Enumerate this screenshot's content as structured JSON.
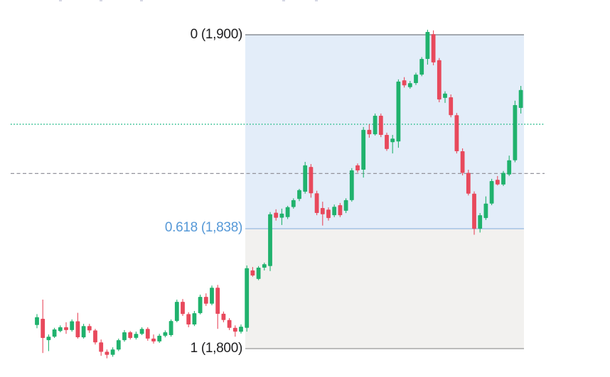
{
  "chart_data": {
    "type": "candlestick",
    "description": "Price chart with Fibonacci retracement overlay from 1,900 (level 0) to 1,800 (level 1)",
    "fib_levels": [
      {
        "label": "0 (1,900)",
        "level": 0,
        "price": 1900,
        "text_color": "#1d1d1f",
        "line_color": "#999ea5"
      },
      {
        "label": "0.618 (1,838)",
        "level": 0.618,
        "price": 1838,
        "text_color": "#5598d7",
        "line_color": "#aac6e4"
      },
      {
        "label": "1 (1,800)",
        "level": 1,
        "price": 1800,
        "text_color": "#1d1d1f",
        "line_color": "#b3b3b3"
      }
    ],
    "zones": [
      {
        "between_levels": [
          0,
          0.618
        ],
        "color": "#e3edf9"
      },
      {
        "between_levels": [
          0.618,
          1
        ],
        "color": "#f2f1ef"
      }
    ],
    "reference_lines": [
      {
        "price": 1871.5,
        "style": "dotted",
        "color": "#45c59b"
      },
      {
        "price": 1855.8,
        "style": "dashed",
        "color": "#94949c"
      }
    ],
    "colors": {
      "up": "#20b26d",
      "down": "#e8495c"
    },
    "legend_position": "none",
    "grid": false,
    "ylim": [
      1793,
      1905
    ],
    "candles_ohlc": [
      [
        1807.5,
        1811.0,
        1806.5,
        1810.0
      ],
      [
        1809.5,
        1815.6,
        1798.6,
        1803.4
      ],
      [
        1802.7,
        1804.5,
        1799.2,
        1803.8
      ],
      [
        1803.8,
        1806.6,
        1803.4,
        1806.1
      ],
      [
        1805.6,
        1807.4,
        1805.2,
        1806.8
      ],
      [
        1806.8,
        1808.4,
        1804.7,
        1805.9
      ],
      [
        1805.9,
        1809.3,
        1805.4,
        1808.7
      ],
      [
        1808.7,
        1811.4,
        1803.2,
        1803.6
      ],
      [
        1803.6,
        1807.9,
        1803.2,
        1807.2
      ],
      [
        1807.2,
        1807.9,
        1805.0,
        1805.8
      ],
      [
        1805.8,
        1806.3,
        1801.3,
        1802.0
      ],
      [
        1802.0,
        1802.9,
        1797.7,
        1799.0
      ],
      [
        1799.0,
        1799.7,
        1796.9,
        1798.0
      ],
      [
        1798.0,
        1800.4,
        1797.4,
        1799.7
      ],
      [
        1799.7,
        1803.2,
        1799.2,
        1802.7
      ],
      [
        1802.7,
        1805.9,
        1802.2,
        1805.2
      ],
      [
        1805.2,
        1805.6,
        1802.9,
        1803.4
      ],
      [
        1803.4,
        1805.4,
        1802.9,
        1804.7
      ],
      [
        1804.7,
        1806.8,
        1804.3,
        1806.3
      ],
      [
        1806.3,
        1806.8,
        1802.5,
        1803.2
      ],
      [
        1803.2,
        1804.5,
        1801.6,
        1802.3
      ],
      [
        1802.3,
        1804.7,
        1801.8,
        1804.1
      ],
      [
        1804.1,
        1805.8,
        1803.6,
        1805.2
      ],
      [
        1804.3,
        1809.3,
        1803.8,
        1808.8
      ],
      [
        1808.8,
        1815.6,
        1808.4,
        1814.9
      ],
      [
        1814.9,
        1815.8,
        1810.4,
        1811.0
      ],
      [
        1811.0,
        1811.6,
        1806.8,
        1807.7
      ],
      [
        1807.7,
        1812.0,
        1807.2,
        1811.3
      ],
      [
        1811.3,
        1817.2,
        1810.9,
        1816.5
      ],
      [
        1816.5,
        1817.6,
        1813.6,
        1814.3
      ],
      [
        1814.3,
        1820.1,
        1813.8,
        1819.4
      ],
      [
        1819.4,
        1820.3,
        1806.3,
        1811.1
      ],
      [
        1811.1,
        1811.8,
        1808.4,
        1809.1
      ],
      [
        1809.1,
        1809.7,
        1805.9,
        1806.6
      ],
      [
        1806.6,
        1807.4,
        1803.8,
        1805.4
      ],
      [
        1805.4,
        1807.7,
        1804.8,
        1807.0
      ],
      [
        1806.6,
        1826.5,
        1805.4,
        1825.6
      ],
      [
        1824.9,
        1826.0,
        1822.9,
        1823.3
      ],
      [
        1822.2,
        1826.3,
        1821.8,
        1825.8
      ],
      [
        1825.8,
        1827.4,
        1824.9,
        1826.9
      ],
      [
        1826.3,
        1843.5,
        1824.7,
        1842.8
      ],
      [
        1843.3,
        1844.4,
        1840.8,
        1841.7
      ],
      [
        1841.7,
        1844.6,
        1839.4,
        1843.0
      ],
      [
        1841.9,
        1845.5,
        1841.3,
        1845.1
      ],
      [
        1845.1,
        1847.9,
        1844.6,
        1847.3
      ],
      [
        1847.7,
        1850.9,
        1847.0,
        1850.5
      ],
      [
        1850.0,
        1859.5,
        1849.4,
        1858.4
      ],
      [
        1857.9,
        1858.8,
        1848.1,
        1849.5
      ],
      [
        1849.5,
        1850.3,
        1842.5,
        1843.2
      ],
      [
        1844.8,
        1846.8,
        1839.2,
        1842.8
      ],
      [
        1844.3,
        1845.0,
        1840.8,
        1841.6
      ],
      [
        1842.5,
        1845.9,
        1841.9,
        1845.2
      ],
      [
        1845.7,
        1846.4,
        1841.9,
        1842.5
      ],
      [
        1843.9,
        1847.9,
        1843.2,
        1847.3
      ],
      [
        1847.3,
        1857.5,
        1846.8,
        1856.8
      ],
      [
        1858.4,
        1859.0,
        1856.1,
        1856.8
      ],
      [
        1857.0,
        1870.6,
        1854.5,
        1869.7
      ],
      [
        1869.7,
        1871.5,
        1867.2,
        1868.3
      ],
      [
        1868.3,
        1874.9,
        1867.9,
        1874.2
      ],
      [
        1874.2,
        1874.9,
        1867.4,
        1868.1
      ],
      [
        1868.1,
        1868.8,
        1863.0,
        1863.6
      ],
      [
        1865.8,
        1868.1,
        1862.2,
        1866.9
      ],
      [
        1866.0,
        1885.8,
        1864.0,
        1885.1
      ],
      [
        1885.5,
        1886.5,
        1883.2,
        1883.9
      ],
      [
        1883.3,
        1885.3,
        1882.8,
        1884.6
      ],
      [
        1884.6,
        1887.9,
        1884.0,
        1887.3
      ],
      [
        1887.3,
        1892.9,
        1886.8,
        1892.3
      ],
      [
        1892.3,
        1901.6,
        1890.5,
        1900.9
      ],
      [
        1900.2,
        1901.4,
        1890.3,
        1891.2
      ],
      [
        1891.9,
        1892.6,
        1878.5,
        1879.4
      ],
      [
        1879.9,
        1882.0,
        1878.3,
        1881.3
      ],
      [
        1880.1,
        1881.0,
        1873.7,
        1874.4
      ],
      [
        1874.4,
        1875.1,
        1862.2,
        1862.9
      ],
      [
        1862.9,
        1863.8,
        1855.2,
        1856.0
      ],
      [
        1856.0,
        1857.0,
        1848.8,
        1849.4
      ],
      [
        1849.4,
        1850.1,
        1836.3,
        1838.2
      ],
      [
        1838.2,
        1843.2,
        1837.0,
        1842.5
      ],
      [
        1841.6,
        1848.5,
        1841.0,
        1846.2
      ],
      [
        1846.2,
        1854.1,
        1845.7,
        1853.4
      ],
      [
        1853.8,
        1855.0,
        1852.0,
        1852.3
      ],
      [
        1852.3,
        1856.6,
        1851.8,
        1856.0
      ],
      [
        1855.5,
        1861.5,
        1855.0,
        1860.0
      ],
      [
        1860.0,
        1879.0,
        1859.4,
        1877.6
      ],
      [
        1876.7,
        1883.7,
        1874.9,
        1882.4
      ]
    ]
  }
}
